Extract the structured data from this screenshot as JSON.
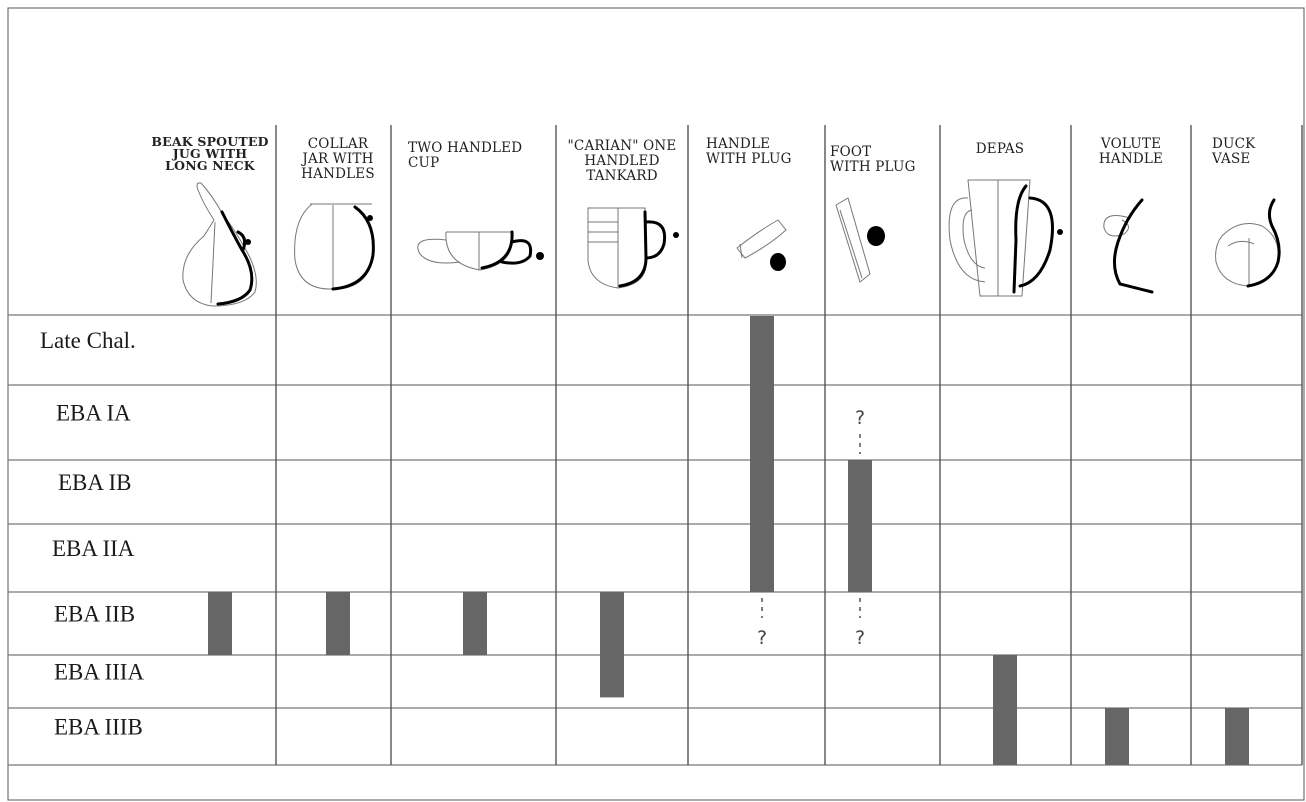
{
  "chart_data": {
    "type": "table",
    "columns": [
      {
        "label": [
          "BEAK SPOUTED",
          "JUG WITH",
          "LONG NECK"
        ]
      },
      {
        "label": [
          "COLLAR",
          "JAR WITH",
          "HANDLES"
        ]
      },
      {
        "label": [
          "TWO HANDLED",
          "CUP"
        ]
      },
      {
        "label": [
          "\"CARIAN\" ONE",
          "HANDLED",
          "TANKARD"
        ]
      },
      {
        "label": [
          "HANDLE",
          "WITH PLUG"
        ]
      },
      {
        "label": [
          "FOOT",
          "WITH PLUG"
        ]
      },
      {
        "label": [
          "DEPAS"
        ]
      },
      {
        "label": [
          "VOLUTE",
          "HANDLE"
        ]
      },
      {
        "label": [
          "DUCK",
          "VASE"
        ]
      }
    ],
    "periods": [
      "Late Chal.",
      "EBA IA",
      "EBA IB",
      "EBA IIA",
      "EBA IIB",
      "EBA IIIA",
      "EBA IIIB"
    ],
    "ranges": [
      {
        "column": 0,
        "from": 4,
        "to": 5
      },
      {
        "column": 1,
        "from": 4,
        "to": 5
      },
      {
        "column": 2,
        "from": 4,
        "to": 5
      },
      {
        "column": 3,
        "from": 4,
        "to": 5.8
      },
      {
        "column": 4,
        "from": 0,
        "to": 4,
        "uncertain_end": "?"
      },
      {
        "column": 5,
        "from": 2,
        "to": 4,
        "uncertain_start": "?",
        "uncertain_end": "?"
      },
      {
        "column": 6,
        "from": 5,
        "to": 7
      },
      {
        "column": 7,
        "from": 6,
        "to": 7
      },
      {
        "column": 8,
        "from": 6,
        "to": 7
      }
    ],
    "bar_color": "#666666"
  }
}
